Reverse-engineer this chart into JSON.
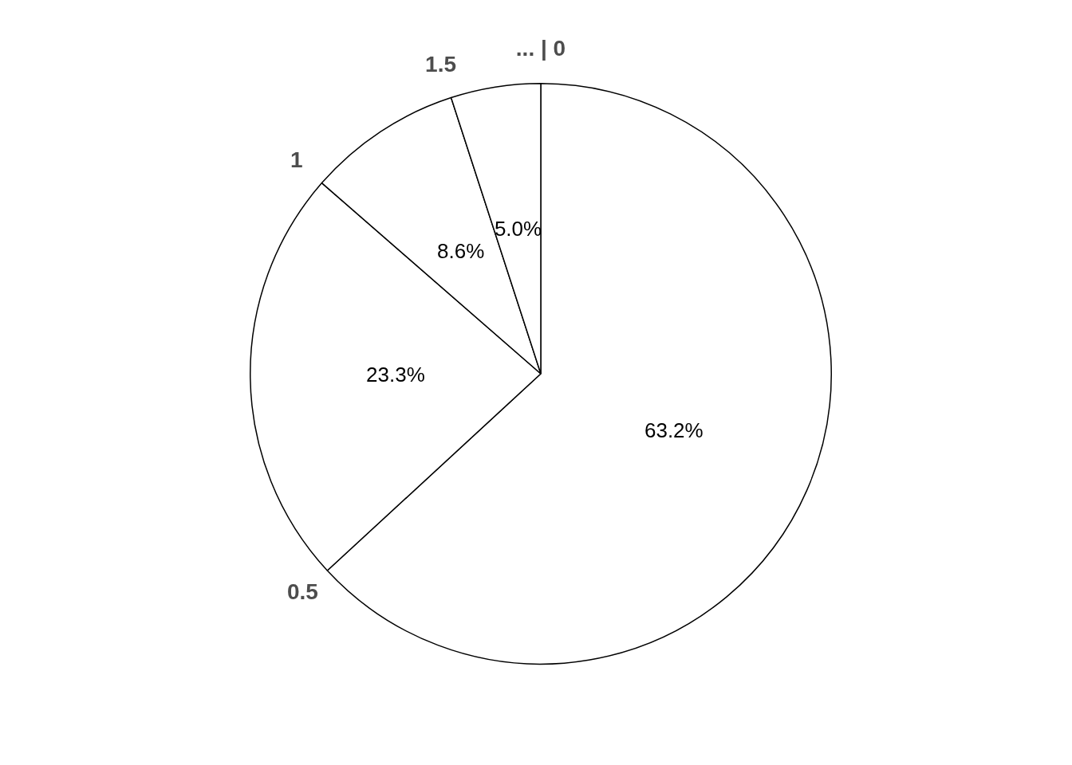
{
  "chart_data": {
    "type": "pie",
    "categories": [
      "... | 0",
      "0.5",
      "1",
      "1.5"
    ],
    "values": [
      63.2,
      23.3,
      8.6,
      5.0
    ],
    "colors": [
      "#ffffff",
      "#ffffff",
      "#ffffff",
      "#ffffff"
    ],
    "value_labels": [
      "63.2%",
      "23.3%",
      "8.6%",
      "5.0%"
    ]
  }
}
